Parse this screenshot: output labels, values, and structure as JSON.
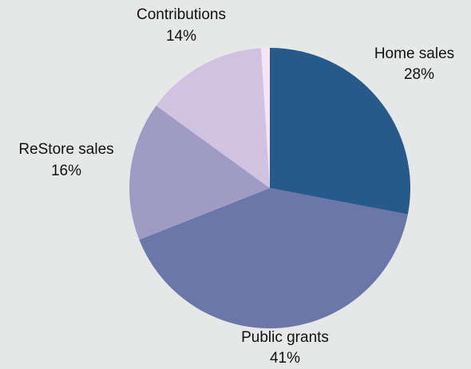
{
  "chart_data": {
    "type": "pie",
    "title": "",
    "slices": [
      {
        "label": "Home sales",
        "value": 28,
        "value_label": "28%",
        "color": "#275a8a"
      },
      {
        "label": "Public grants",
        "value": 41,
        "value_label": "41%",
        "color": "#6a77a8"
      },
      {
        "label": "ReStore sales",
        "value": 16,
        "value_label": "16%",
        "color": "#a09bc4"
      },
      {
        "label": "Contributions",
        "value": 14,
        "value_label": "14%",
        "color": "#d1c2e1"
      },
      {
        "label": "",
        "value": 1,
        "value_label": "",
        "color": "#f5e4f4"
      }
    ],
    "start_angle_deg": 0,
    "direction": "clockwise",
    "background": "#e6e8e8"
  }
}
